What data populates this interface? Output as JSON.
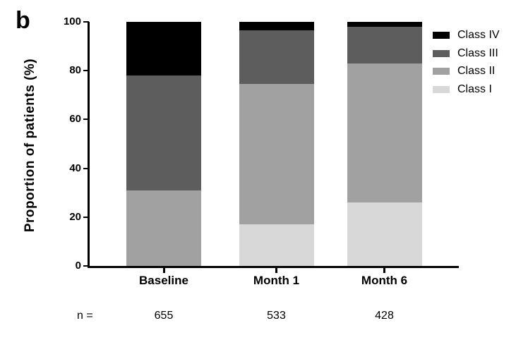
{
  "panel_label": "b",
  "chart_data": {
    "type": "bar",
    "stacked": true,
    "title": "",
    "xlabel": "",
    "ylabel": "Proportion of patients (%)",
    "ylim": [
      0,
      100
    ],
    "yticks": [
      0,
      20,
      40,
      60,
      80,
      100
    ],
    "grid": false,
    "categories": [
      "Baseline",
      "Month 1",
      "Month 6"
    ],
    "series": [
      {
        "name": "Class I",
        "color": "#d8d8d8",
        "values": [
          0,
          17,
          26
        ]
      },
      {
        "name": "Class II",
        "color": "#a1a1a1",
        "values": [
          31,
          57.5,
          57
        ]
      },
      {
        "name": "Class III",
        "color": "#5d5d5d",
        "values": [
          47,
          22,
          15
        ]
      },
      {
        "name": "Class IV",
        "color": "#000000",
        "values": [
          22,
          3.5,
          2
        ]
      }
    ],
    "legend_position": "top-right",
    "legend_order": [
      "Class IV",
      "Class III",
      "Class II",
      "Class I"
    ],
    "n_label": "n =",
    "n_values": [
      "655",
      "533",
      "428"
    ]
  }
}
